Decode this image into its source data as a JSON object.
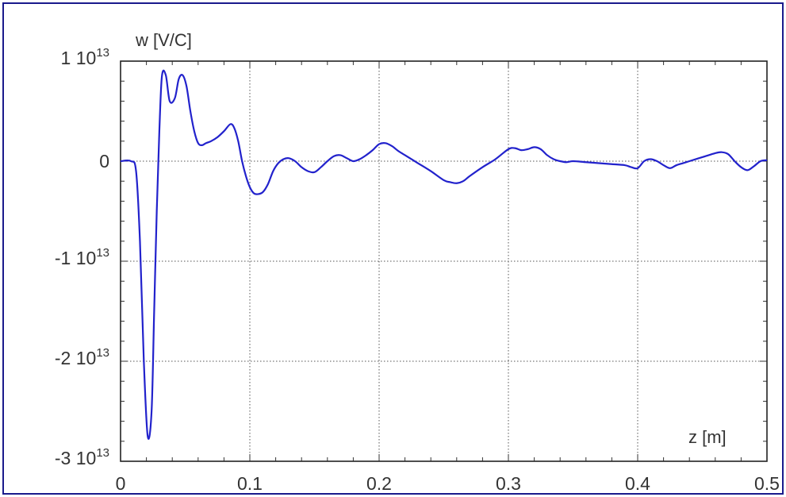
{
  "chart_data": {
    "type": "line",
    "title": "",
    "xlabel": "z [m]",
    "ylabel": "w [V/C]",
    "xlim": [
      0,
      0.5
    ],
    "ylim": [
      -30000000000000.0,
      10000000000000.0
    ],
    "x_ticks": [
      {
        "value": 0,
        "label": "0"
      },
      {
        "value": 0.1,
        "label": "0.1"
      },
      {
        "value": 0.2,
        "label": "0.2"
      },
      {
        "value": 0.3,
        "label": "0.3"
      },
      {
        "value": 0.4,
        "label": "0.4"
      },
      {
        "value": 0.5,
        "label": "0.5"
      }
    ],
    "y_ticks": [
      {
        "value": 10000000000000.0,
        "mantissa": "1 10",
        "exponent": "13"
      },
      {
        "value": 0,
        "mantissa": "0",
        "exponent": ""
      },
      {
        "value": -10000000000000.0,
        "mantissa": "-1 10",
        "exponent": "13"
      },
      {
        "value": -20000000000000.0,
        "mantissa": "-2 10",
        "exponent": "13"
      },
      {
        "value": -30000000000000.0,
        "mantissa": "-3 10",
        "exponent": "13"
      }
    ],
    "grid": true,
    "line_color": "#2222cc",
    "series": [
      {
        "x": [
          0,
          0.008,
          0.012,
          0.015,
          0.018,
          0.021,
          0.024,
          0.026,
          0.028,
          0.03,
          0.032,
          0.035,
          0.038,
          0.042,
          0.045,
          0.048,
          0.051,
          0.054,
          0.057,
          0.06,
          0.063,
          0.066,
          0.07,
          0.075,
          0.08,
          0.085,
          0.088,
          0.091,
          0.094,
          0.097,
          0.1,
          0.103,
          0.106,
          0.11,
          0.114,
          0.118,
          0.122,
          0.126,
          0.13,
          0.135,
          0.14,
          0.145,
          0.15,
          0.155,
          0.16,
          0.165,
          0.17,
          0.175,
          0.18,
          0.185,
          0.19,
          0.195,
          0.2,
          0.205,
          0.21,
          0.215,
          0.22,
          0.23,
          0.24,
          0.25,
          0.255,
          0.26,
          0.265,
          0.27,
          0.28,
          0.29,
          0.3,
          0.305,
          0.31,
          0.315,
          0.32,
          0.325,
          0.33,
          0.335,
          0.34,
          0.345,
          0.35,
          0.36,
          0.37,
          0.38,
          0.39,
          0.395,
          0.4,
          0.405,
          0.41,
          0.415,
          0.42,
          0.425,
          0.43,
          0.435,
          0.44,
          0.45,
          0.46,
          0.465,
          0.47,
          0.475,
          0.48,
          0.485,
          0.49,
          0.495,
          0.5
        ],
        "y": [
          0,
          0,
          -1000000000000.0,
          -8000000000000.0,
          -20000000000000.0,
          -27500000000000.0,
          -25000000000000.0,
          -15000000000000.0,
          -5000000000000.0,
          3000000000000.0,
          8500000000000.0,
          8600000000000.0,
          6000000000000.0,
          6300000000000.0,
          8200000000000.0,
          8600000000000.0,
          7500000000000.0,
          5000000000000.0,
          3000000000000.0,
          1800000000000.0,
          1600000000000.0,
          1800000000000.0,
          2000000000000.0,
          2400000000000.0,
          3000000000000.0,
          3700000000000.0,
          3300000000000.0,
          2000000000000.0,
          0,
          -1500000000000.0,
          -2600000000000.0,
          -3200000000000.0,
          -3300000000000.0,
          -3100000000000.0,
          -2300000000000.0,
          -1000000000000.0,
          -200000000000.0,
          200000000000.0,
          300000000000.0,
          0,
          -600000000000.0,
          -1000000000000.0,
          -1100000000000.0,
          -600000000000.0,
          0,
          500000000000.0,
          600000000000.0,
          300000000000.0,
          0,
          200000000000.0,
          600000000000.0,
          1100000000000.0,
          1700000000000.0,
          1800000000000.0,
          1500000000000.0,
          1000000000000.0,
          600000000000.0,
          -200000000000.0,
          -1000000000000.0,
          -1900000000000.0,
          -2100000000000.0,
          -2200000000000.0,
          -2000000000000.0,
          -1500000000000.0,
          -600000000000.0,
          200000000000.0,
          1200000000000.0,
          1300000000000.0,
          1100000000000.0,
          1200000000000.0,
          1400000000000.0,
          1200000000000.0,
          600000000000.0,
          200000000000.0,
          0,
          -100000000000.0,
          0,
          -100000000000.0,
          -200000000000.0,
          -300000000000.0,
          -400000000000.0,
          -600000000000.0,
          -700000000000.0,
          0,
          200000000000.0,
          0,
          -400000000000.0,
          -700000000000.0,
          -400000000000.0,
          -200000000000.0,
          0,
          400000000000.0,
          800000000000.0,
          900000000000.0,
          700000000000.0,
          0,
          -600000000000.0,
          -900000000000.0,
          -500000000000.0,
          0,
          100000000000.0
        ]
      }
    ]
  }
}
